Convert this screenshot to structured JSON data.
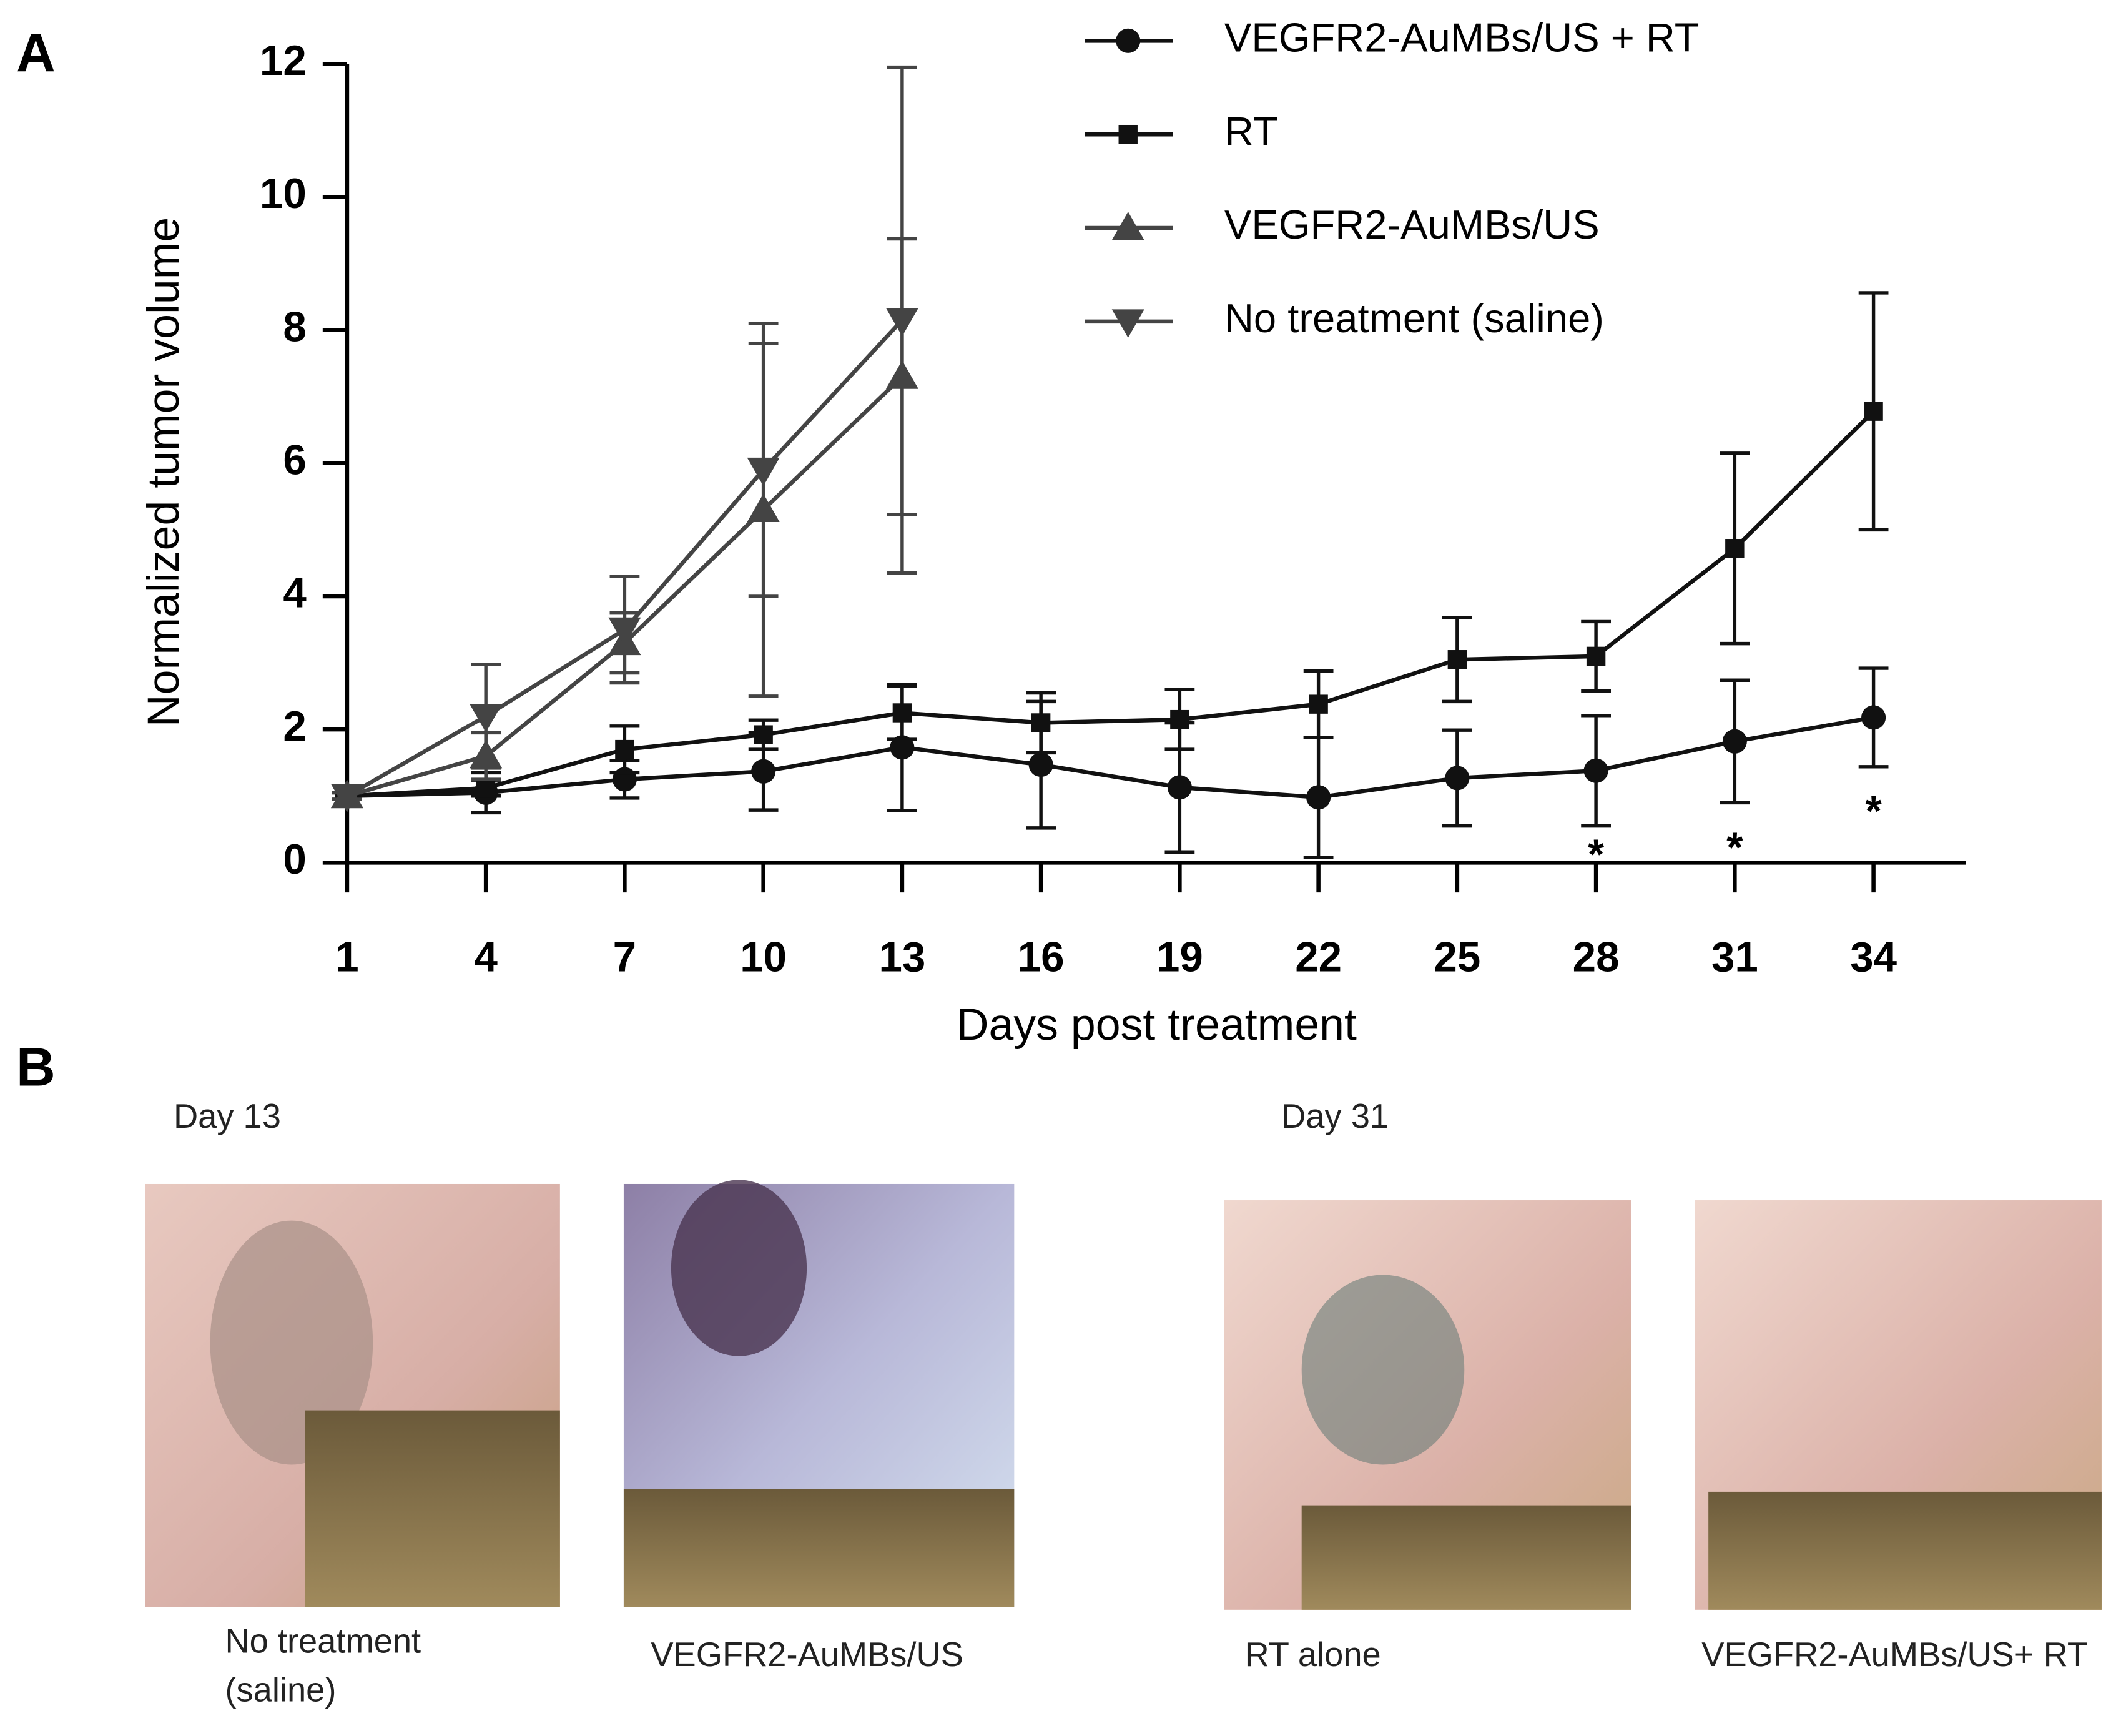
{
  "panel_labels": [
    "A",
    "B"
  ],
  "chart_data": {
    "type": "line",
    "x_label": "Days post treatment",
    "y_label": "Normalized tumor volume",
    "x": [
      1,
      4,
      7,
      10,
      13,
      16,
      19,
      22,
      25,
      28,
      31,
      34
    ],
    "xlim": [
      1,
      36
    ],
    "ylim": [
      0,
      12
    ],
    "xticks": [
      1,
      4,
      7,
      10,
      13,
      16,
      19,
      22,
      25,
      28,
      31,
      34
    ],
    "yticks": [
      0,
      2,
      4,
      6,
      8,
      10,
      12
    ],
    "legend": "upper right",
    "series": [
      {
        "name": "VEGFR2-AuMBs/US + RT",
        "color": "#111111",
        "marker": "circle",
        "values": [
          1.0,
          1.05,
          1.25,
          1.37,
          1.73,
          1.47,
          1.13,
          0.98,
          1.27,
          1.38,
          1.82,
          2.18
        ],
        "errors": [
          0.05,
          0.3,
          0.28,
          0.58,
          0.95,
          0.95,
          0.97,
          0.9,
          0.72,
          0.83,
          0.92,
          0.74
        ]
      },
      {
        "name": "RT",
        "color": "#111111",
        "marker": "square",
        "values": [
          1.0,
          1.12,
          1.7,
          1.92,
          2.25,
          2.1,
          2.15,
          2.38,
          3.05,
          3.1,
          4.72,
          6.78
        ],
        "errors": [
          0.05,
          0.12,
          0.35,
          0.22,
          0.4,
          0.45,
          0.45,
          0.5,
          0.63,
          0.52,
          1.43,
          1.78
        ]
      },
      {
        "name": "VEGFR2-AuMBs/US",
        "color": "#444444",
        "marker": "triangle-up",
        "values": [
          1.0,
          1.6,
          3.3,
          5.3,
          7.3,
          null,
          null,
          null,
          null,
          null,
          null,
          null
        ],
        "errors": [
          0.05,
          0.35,
          0.45,
          2.8,
          2.07,
          null,
          null,
          null,
          null,
          null,
          null,
          null
        ]
      },
      {
        "name": "No treatment (saline)",
        "color": "#444444",
        "marker": "triangle-down",
        "values": [
          1.0,
          2.2,
          3.5,
          5.9,
          8.15,
          null,
          null,
          null,
          null,
          null,
          null,
          null
        ],
        "errors": [
          0.05,
          0.78,
          0.8,
          1.9,
          3.8,
          null,
          null,
          null,
          null,
          null,
          null,
          null
        ]
      }
    ],
    "annotations": [
      {
        "text": "*",
        "x": 28,
        "y": 0.2
      },
      {
        "text": "*",
        "x": 31,
        "y": 0.3
      },
      {
        "text": "*",
        "x": 34,
        "y": 0.85
      }
    ]
  },
  "photos": {
    "groups": [
      {
        "label": "Day 13",
        "items": [
          {
            "caption": [
              "No treatment",
              "(saline)"
            ]
          },
          {
            "caption": [
              "VEGFR2-AuMBs/US"
            ]
          }
        ]
      },
      {
        "label": "Day 31",
        "items": [
          {
            "caption": [
              "RT alone"
            ]
          },
          {
            "caption": [
              "VEGFR2-AuMBs/US+ RT"
            ]
          }
        ]
      }
    ]
  }
}
